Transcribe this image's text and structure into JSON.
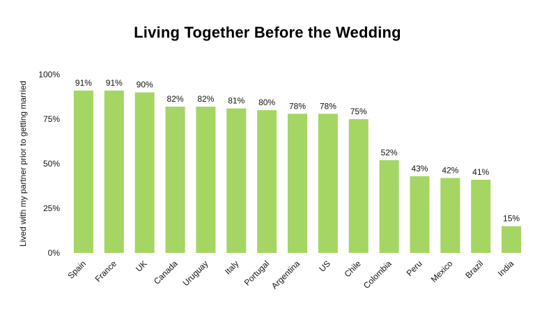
{
  "chart_data": {
    "type": "bar",
    "title": "Living Together Before the Wedding",
    "xlabel": "",
    "ylabel": "Lived with my partner prior to getting married",
    "categories": [
      "Spain",
      "France",
      "UK",
      "Canada",
      "Uruguay",
      "Italy",
      "Portugal",
      "Argentina",
      "US",
      "Chile",
      "Colombia",
      "Peru",
      "Mexico",
      "Brazil",
      "India"
    ],
    "values": [
      91,
      91,
      90,
      82,
      82,
      81,
      80,
      78,
      78,
      75,
      52,
      43,
      42,
      41,
      15
    ],
    "data_labels": [
      "91%",
      "91%",
      "90%",
      "82%",
      "82%",
      "81%",
      "80%",
      "78%",
      "78%",
      "75%",
      "52%",
      "43%",
      "42%",
      "41%",
      "15%"
    ],
    "ylim": [
      0,
      100
    ],
    "yticks": [
      0,
      25,
      50,
      75,
      100
    ],
    "ytick_labels": [
      "0%",
      "25%",
      "50%",
      "75%",
      "100%"
    ],
    "bar_color": "#a5d563",
    "grid": false,
    "legend": "none"
  }
}
